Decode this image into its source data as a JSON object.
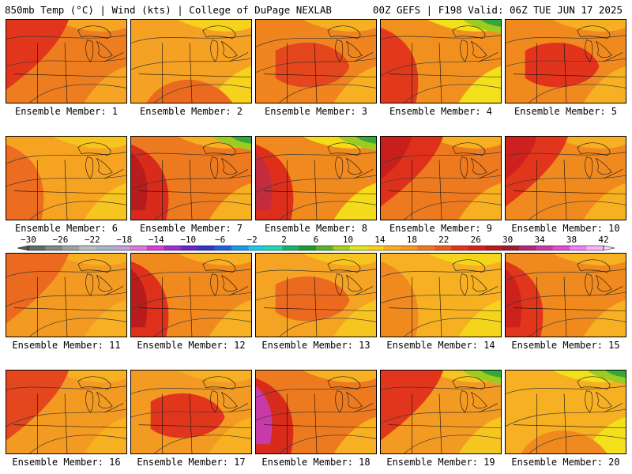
{
  "header": {
    "left": "850mb Temp (°C) | Wind (kts) | College of DuPage NEXLAB",
    "right": "00Z GEFS | F198 Valid: 06Z TUE JUN 17 2025"
  },
  "members": [
    {
      "label": "Ensemble Member: 1",
      "base": "#ee7d1f",
      "warm": "#e2361c",
      "hot": null,
      "cool": "#f6a423",
      "warm_side": "nw",
      "green": false
    },
    {
      "label": "Ensemble Member: 2",
      "base": "#f5a123",
      "warm": "#ec6a1f",
      "hot": null,
      "cool": "#f6d21c",
      "warm_side": "s",
      "green": false
    },
    {
      "label": "Ensemble Member: 3",
      "base": "#f0851f",
      "warm": "#e4461d",
      "hot": null,
      "cool": "#f6b022",
      "warm_side": "c",
      "green": false
    },
    {
      "label": "Ensemble Member: 4",
      "base": "#f2901f",
      "warm": "#e2391c",
      "hot": null,
      "cool": "#f3e01a",
      "warm_side": "w",
      "green": true
    },
    {
      "label": "Ensemble Member: 5",
      "base": "#f08a1f",
      "warm": "#e2341c",
      "hot": null,
      "cool": "#f6b022",
      "warm_side": "c",
      "green": false
    },
    {
      "label": "Ensemble Member: 6",
      "base": "#f6a322",
      "warm": "#ec6d1f",
      "hot": null,
      "cool": "#f6c51f",
      "warm_side": "w",
      "green": false
    },
    {
      "label": "Ensemble Member: 7",
      "base": "#ee7a1f",
      "warm": "#d92b1b",
      "hot": "#b81c1c",
      "cool": "#f6b022",
      "warm_side": "w",
      "green": true
    },
    {
      "label": "Ensemble Member: 8",
      "base": "#f08a1f",
      "warm": "#de2f1b",
      "hot": "#c22c3c",
      "cool": "#f4dc1a",
      "warm_side": "w",
      "green": true
    },
    {
      "label": "Ensemble Member: 9",
      "base": "#ee7a1f",
      "warm": "#de301b",
      "hot": "#c81f1c",
      "cool": "#f6b022",
      "warm_side": "nw",
      "green": false
    },
    {
      "label": "Ensemble Member: 10",
      "base": "#f08a1f",
      "warm": "#e2361c",
      "hot": "#cc211c",
      "cool": "#f6b022",
      "warm_side": "nw",
      "green": false
    },
    {
      "label": "Ensemble Member: 11",
      "base": "#f39a22",
      "warm": "#ec6a1f",
      "hot": null,
      "cool": "#f6b022",
      "warm_side": "nw",
      "green": false
    },
    {
      "label": "Ensemble Member: 12",
      "base": "#f08a1f",
      "warm": "#de301b",
      "hot": "#b81c1c",
      "cool": "#f6b022",
      "warm_side": "w",
      "green": false
    },
    {
      "label": "Ensemble Member: 13",
      "base": "#f5a323",
      "warm": "#ec6a1f",
      "hot": null,
      "cool": "#f6c51f",
      "warm_side": "c",
      "green": false
    },
    {
      "label": "Ensemble Member: 14",
      "base": "#f6b022",
      "warm": "#f08a1f",
      "hot": null,
      "cool": "#f5d51c",
      "warm_side": "w",
      "green": false
    },
    {
      "label": "Ensemble Member: 15",
      "base": "#f08a1f",
      "warm": "#e2361c",
      "hot": "#cc211c",
      "cool": "#f6b022",
      "warm_side": "w",
      "green": false
    },
    {
      "label": "Ensemble Member: 16",
      "base": "#f39a22",
      "warm": "#e4461d",
      "hot": null,
      "cool": "#f6b022",
      "warm_side": "nw",
      "green": false
    },
    {
      "label": "Ensemble Member: 17",
      "base": "#f39a22",
      "warm": "#e2361c",
      "hot": null,
      "cool": "#f6b022",
      "warm_side": "c",
      "green": false
    },
    {
      "label": "Ensemble Member: 18",
      "base": "#ee7a1f",
      "warm": "#d92b1b",
      "hot": "#c83aa8",
      "cool": "#f6b022",
      "warm_side": "w",
      "green": false
    },
    {
      "label": "Ensemble Member: 19",
      "base": "#f39a22",
      "warm": "#e2361c",
      "hot": null,
      "cool": "#f6c51f",
      "warm_side": "nw",
      "green": true
    },
    {
      "label": "Ensemble Member: 20",
      "base": "#f6b022",
      "warm": "#f08a1f",
      "hot": null,
      "cool": "#f3e01a",
      "warm_side": "s",
      "green": true
    }
  ],
  "colorbar": {
    "labels": [
      "−30",
      "−26",
      "−22",
      "−18",
      "−14",
      "−10",
      "−6",
      "−2",
      "2",
      "6",
      "10",
      "14",
      "18",
      "22",
      "26",
      "30",
      "34",
      "38",
      "42"
    ],
    "colors": [
      "#5f6e67",
      "#7e8a86",
      "#9aa5a2",
      "#b8c1c0",
      "#a9b4cf",
      "#c0a3d9",
      "#d77ad8",
      "#d53fd3",
      "#9c2fcf",
      "#6a26c8",
      "#3535c8",
      "#2262d8",
      "#1c9be5",
      "#22c8e6",
      "#25d6b4",
      "#1fb06b",
      "#209b32",
      "#5ab22a",
      "#a8cf22",
      "#e1e91c",
      "#f6d21c",
      "#f6b022",
      "#f39a22",
      "#ee7a1f",
      "#ea5a1e",
      "#e2361c",
      "#d3231b",
      "#b81c1c",
      "#9c1d2e",
      "#b12a73",
      "#c83aa8",
      "#de4fd0",
      "#f07ff0",
      "#f6b6f2"
    ]
  }
}
